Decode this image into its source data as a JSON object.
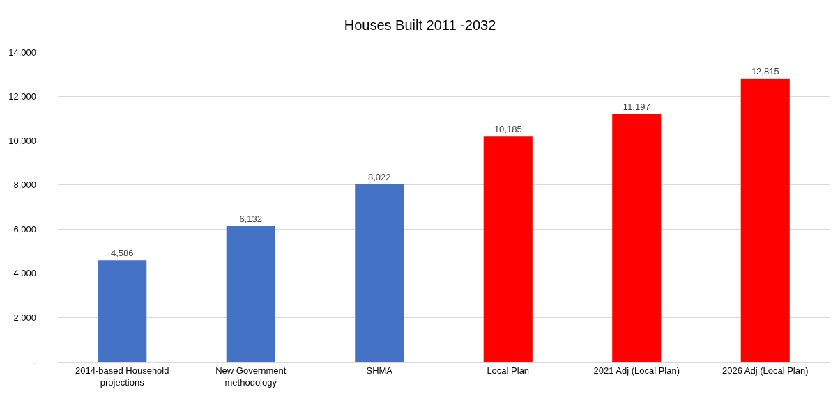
{
  "chart_data": {
    "type": "bar",
    "title": "Houses Built 2011 -2032",
    "categories": [
      "2014-based Household projections",
      "New Government methodology",
      "SHMA",
      "Local Plan",
      "2021 Adj (Local Plan)",
      "2026 Adj (Local Plan)"
    ],
    "values": [
      4586,
      6132,
      8022,
      10185,
      11197,
      12815
    ],
    "value_labels": [
      "4,586",
      "6,132",
      "8,022",
      "10,185",
      "11,197",
      "12,815"
    ],
    "colors": [
      "#4472c4",
      "#4472c4",
      "#4472c4",
      "#ff0000",
      "#ff0000",
      "#ff0000"
    ],
    "ylim": [
      0,
      14000
    ],
    "yticks": [
      {
        "value": 0,
        "label": "-"
      },
      {
        "value": 2000,
        "label": "2,000"
      },
      {
        "value": 4000,
        "label": "4,000"
      },
      {
        "value": 6000,
        "label": "6,000"
      },
      {
        "value": 8000,
        "label": "8,000"
      },
      {
        "value": 10000,
        "label": "10,000"
      },
      {
        "value": 12000,
        "label": "12,000"
      },
      {
        "value": 14000,
        "label": "14,000"
      }
    ],
    "grid": "y",
    "legend": false
  }
}
